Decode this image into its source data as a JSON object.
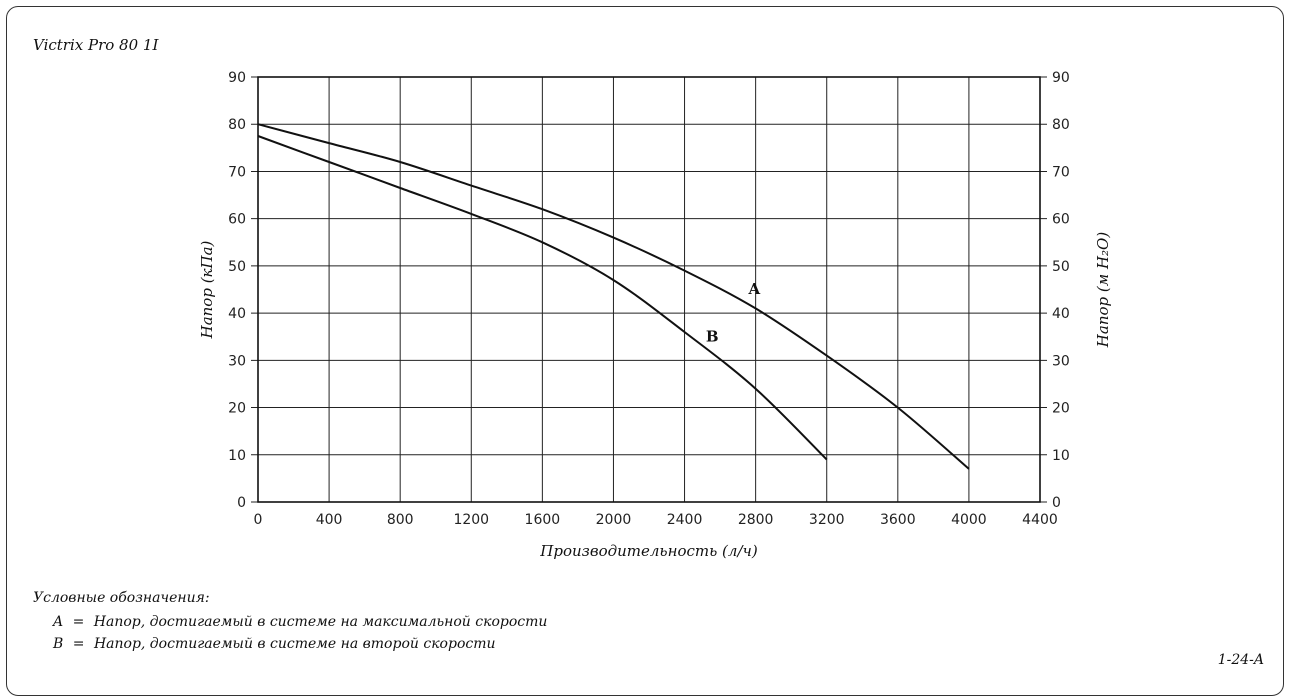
{
  "model_title": "Victrix Pro 80 1I",
  "figure_code": "1-24-A",
  "legend": {
    "title": "Условные обозначения:",
    "items": [
      {
        "key": "A",
        "eq": "=",
        "text": "Напор, достигаемый в системе на максимальной скорости"
      },
      {
        "key": "B",
        "eq": "=",
        "text": "Напор, достигаемый в системе на второй скорости"
      }
    ]
  },
  "chart_data": {
    "type": "line",
    "xlabel": "Производительность (л/ч)",
    "ylabel_left": "Напор (кПа)",
    "ylabel_right": "Напор (м H₂O)",
    "xlim": [
      0,
      4400
    ],
    "ylim": [
      0,
      90
    ],
    "x_ticks": [
      0,
      400,
      800,
      1200,
      1600,
      2000,
      2400,
      2800,
      3200,
      3600,
      4000,
      4400
    ],
    "y_ticks": [
      0,
      10,
      20,
      30,
      40,
      50,
      60,
      70,
      80,
      90
    ],
    "y_ticks_right": [
      0,
      10,
      20,
      30,
      40,
      50,
      60,
      70,
      80,
      90
    ],
    "grid": true,
    "series": [
      {
        "name": "A",
        "x": [
          0,
          400,
          800,
          1200,
          1600,
          2000,
          2400,
          2800,
          3200,
          3600,
          4000
        ],
        "y": [
          80,
          76,
          72,
          67,
          62,
          56,
          49,
          41,
          31,
          20,
          7
        ]
      },
      {
        "name": "B",
        "x": [
          0,
          400,
          800,
          1200,
          1600,
          2000,
          2400,
          2800,
          3200
        ],
        "y": [
          77.5,
          72,
          66.5,
          61,
          55,
          47,
          36,
          24,
          9
        ]
      }
    ]
  }
}
